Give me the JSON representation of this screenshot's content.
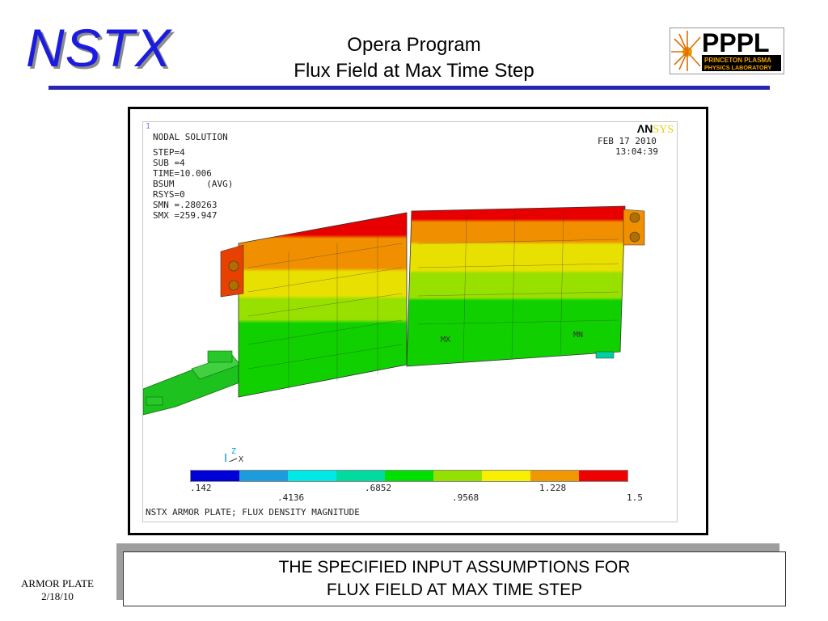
{
  "header": {
    "logo_text": "NSTX",
    "title_line1": "Opera Program",
    "title_line2": "Flux Field at Max Time Step",
    "pppl_logo": {
      "main": "PPPL",
      "sub1": "PRINCETON PLASMA",
      "sub2": "PHYSICS LABORATORY"
    }
  },
  "ansys": {
    "window_number": "1",
    "solution_type": "NODAL SOLUTION",
    "step": "STEP=4",
    "sub": "SUB =4",
    "time": "TIME=10.006",
    "bsum": "BSUM      (AVG)",
    "rsys": "RSYS=0",
    "smn": "SMN =.280263",
    "smx": "SMX =259.947",
    "date": "FEB 17 2010",
    "time_of_day": "13:04:39",
    "logo_an": "ΛN",
    "logo_sys": "SYS",
    "mx_label": "MX",
    "mn_label": "MN",
    "triad_z": "Z",
    "triad_x": "X",
    "plot_title": "NSTX ARMOR PLATE; FLUX DENSITY MAGNITUDE",
    "legend": {
      "colors": [
        "#0000d8",
        "#1c9cdc",
        "#00e8e8",
        "#00dca0",
        "#00e000",
        "#94e000",
        "#f8f000",
        "#f09800",
        "#f00000"
      ],
      "labels_top": [
        ".142",
        ".6852",
        "1.228"
      ],
      "labels_bottom": [
        ".4136",
        ".9568",
        "1.5"
      ]
    }
  },
  "caption": {
    "line1": "THE SPECIFIED INPUT ASSUMPTIONS FOR",
    "line2": "FLUX FIELD AT MAX TIME STEP"
  },
  "footer": {
    "line1": "ARMOR  PLATE",
    "line2": "2/18/10"
  }
}
